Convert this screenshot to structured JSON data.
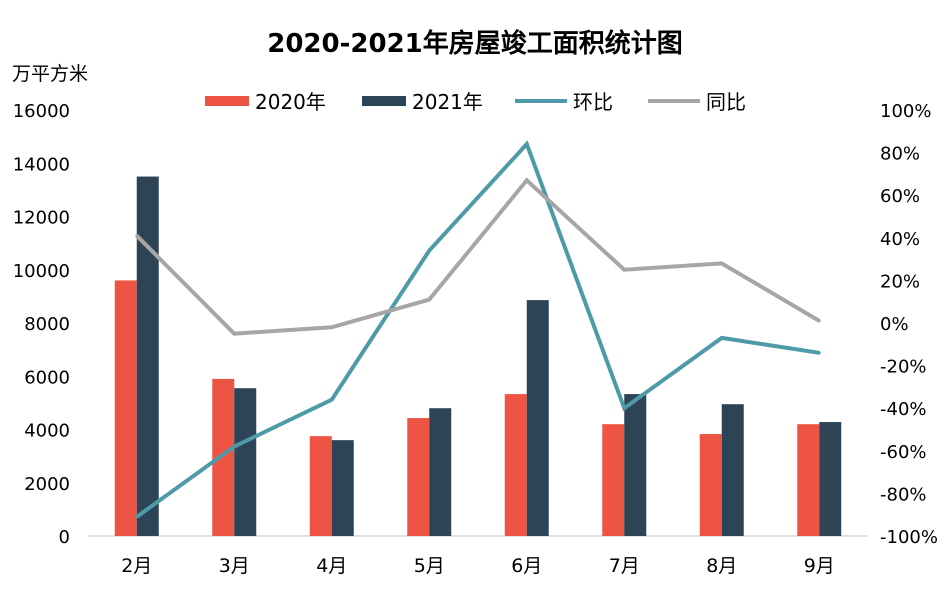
{
  "chart_data": {
    "type": "bar",
    "title": "2020-2021年房屋竣工面积统计图",
    "ylabel": "万平方米",
    "categories": [
      "2月",
      "3月",
      "4月",
      "5月",
      "6月",
      "7月",
      "8月",
      "9月"
    ],
    "ylim": [
      0,
      16000
    ],
    "yticks": [
      "0",
      "2000",
      "4000",
      "6000",
      "8000",
      "10000",
      "12000",
      "14000",
      "16000"
    ],
    "y2lim": [
      -100,
      100
    ],
    "y2ticks": [
      "-100%",
      "-80%",
      "-60%",
      "-40%",
      "-20%",
      "0%",
      "20%",
      "40%",
      "60%",
      "80%",
      "100%"
    ],
    "legend_position": "top",
    "grid": false,
    "series": [
      {
        "name": "2020年",
        "kind": "bar",
        "axis": "left",
        "color": "#EE5443",
        "values": [
          9600,
          5900,
          3750,
          4430,
          5330,
          4200,
          3830,
          4200
        ]
      },
      {
        "name": "2021年",
        "kind": "bar",
        "axis": "left",
        "color": "#2D4457",
        "values": [
          13500,
          5550,
          3600,
          4800,
          8860,
          5330,
          4950,
          4280
        ]
      },
      {
        "name": "环比",
        "kind": "line",
        "axis": "right",
        "unit": "%",
        "color": "#4E9BA7",
        "values": [
          -91,
          -58,
          -36,
          34,
          84,
          -40,
          -7,
          -14
        ]
      },
      {
        "name": "同比",
        "kind": "line",
        "axis": "right",
        "unit": "%",
        "color": "#A6A6A6",
        "values": [
          41,
          -5,
          -2,
          11,
          67,
          25,
          28,
          1
        ]
      }
    ]
  }
}
